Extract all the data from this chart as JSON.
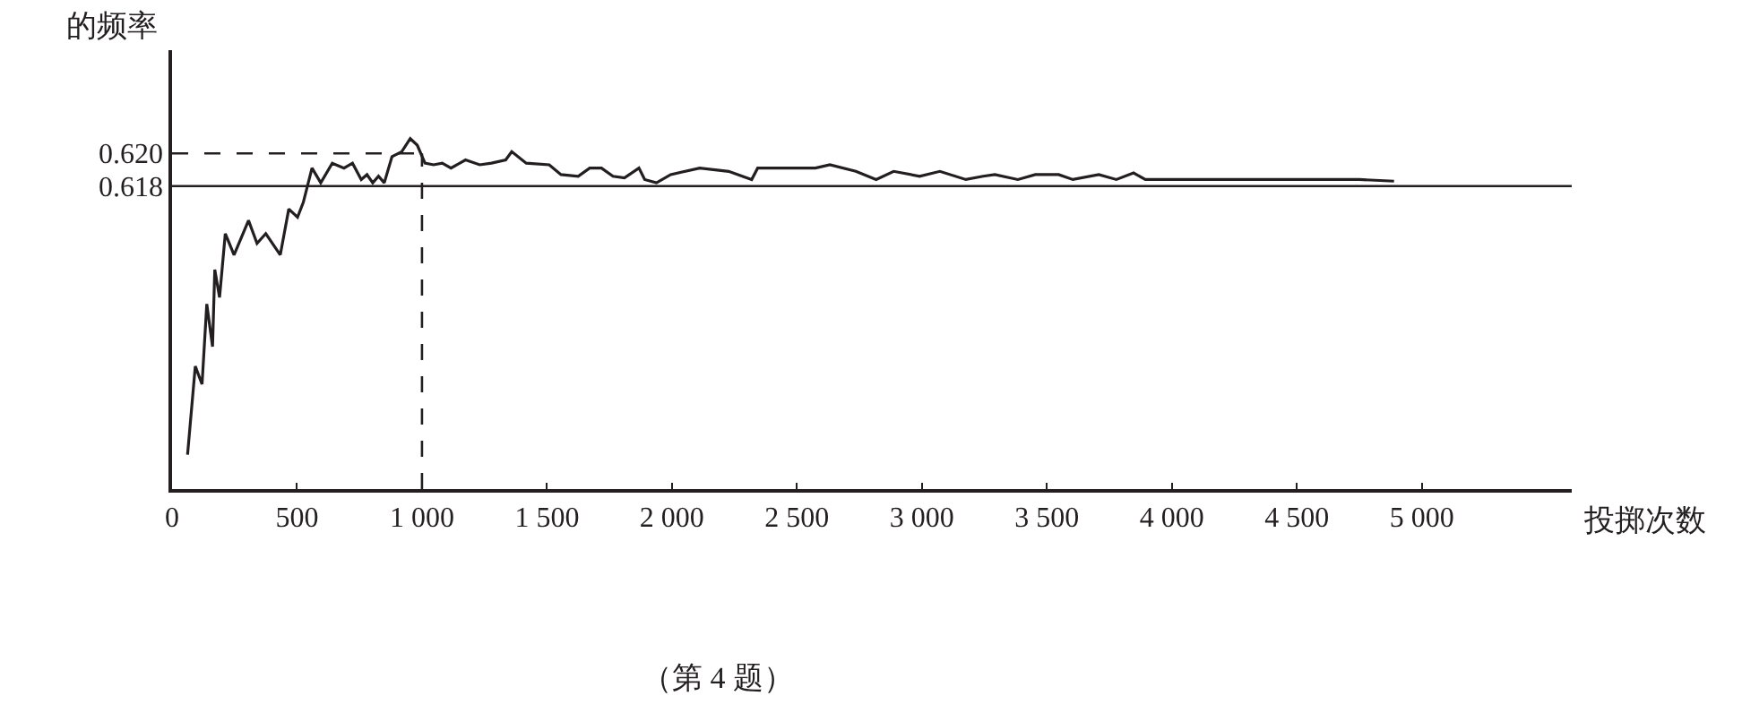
{
  "chart_data": {
    "type": "line",
    "ylabel": "的频率",
    "xlabel": "投掷次数",
    "annotations": [
      "（第 4 题）"
    ],
    "xlim": [
      0,
      5600
    ],
    "ylim": [
      0.5995,
      0.6263
    ],
    "xticks": [
      0,
      500,
      {
        "value": 1000,
        "label": "1 000"
      },
      {
        "value": 1500,
        "label": "1 500"
      },
      {
        "value": 2000,
        "label": "2 000"
      },
      {
        "value": 2500,
        "label": "2 500"
      },
      {
        "value": 3000,
        "label": "3 000"
      },
      {
        "value": 3500,
        "label": "3 500"
      },
      {
        "value": 4000,
        "label": "4 000"
      },
      {
        "value": 4500,
        "label": "4 500"
      },
      {
        "value": 5000,
        "label": "5 000"
      }
    ],
    "yticks": [
      {
        "value": 0.618,
        "label": "0.618"
      },
      {
        "value": 0.62,
        "label": "0.620"
      }
    ],
    "marker": "none",
    "line_style": "solid",
    "x": [
      62,
      93,
      120,
      139,
      162,
      171,
      190,
      213,
      248,
      306,
      340,
      375,
      433,
      467,
      502,
      525,
      560,
      595,
      641,
      688,
      722,
      757,
      780,
      803,
      826,
      849,
      880,
      919,
      953,
      981,
      1012,
      1046,
      1081,
      1116,
      1174,
      1231,
      1278,
      1335,
      1359,
      1417,
      1509,
      1556,
      1625,
      1671,
      1718,
      1764,
      1810,
      1868,
      1891,
      1938,
      1995,
      2111,
      2227,
      2319,
      2343,
      2481,
      2574,
      2632,
      2736,
      2817,
      2887,
      2991,
      3072,
      3176,
      3245,
      3292,
      3384,
      3454,
      3547,
      3604,
      3708,
      3778,
      3847,
      3894,
      4056,
      4194,
      4333,
      4472,
      4611,
      4750,
      4889
    ],
    "series": [
      {
        "color": "#231f20",
        "values": [
          0.6016,
          0.607,
          0.6059,
          0.6108,
          0.6082,
          0.6129,
          0.6112,
          0.6151,
          0.6138,
          0.6159,
          0.6145,
          0.6151,
          0.6138,
          0.6166,
          0.6161,
          0.617,
          0.6191,
          0.6182,
          0.6194,
          0.6191,
          0.6194,
          0.6184,
          0.6187,
          0.6182,
          0.6186,
          0.6182,
          0.6198,
          0.6201,
          0.6209,
          0.6205,
          0.6194,
          0.6193,
          0.6194,
          0.6191,
          0.6196,
          0.6193,
          0.6194,
          0.6196,
          0.6201,
          0.6194,
          0.6193,
          0.6187,
          0.6186,
          0.6191,
          0.6191,
          0.6186,
          0.6185,
          0.6191,
          0.6184,
          0.6182,
          0.6187,
          0.6191,
          0.6189,
          0.6184,
          0.6191,
          0.6191,
          0.6191,
          0.6193,
          0.6189,
          0.6184,
          0.6189,
          0.6186,
          0.6189,
          0.6184,
          0.6186,
          0.6187,
          0.6184,
          0.6187,
          0.6187,
          0.6184,
          0.6187,
          0.6184,
          0.6188,
          0.6184,
          0.6184,
          0.6184,
          0.6184,
          0.6184,
          0.6184,
          0.6184,
          0.6183
        ]
      }
    ],
    "ref_lines": [
      {
        "axis": "y",
        "value": 0.618,
        "color": "#231f20",
        "line_style": "solid"
      },
      {
        "axis": "y",
        "value": 0.62,
        "color": "#231f20",
        "line_style": "dashed"
      },
      {
        "axis": "x",
        "value": 1000,
        "color": "#231f20",
        "line_style": "dashed"
      }
    ]
  }
}
